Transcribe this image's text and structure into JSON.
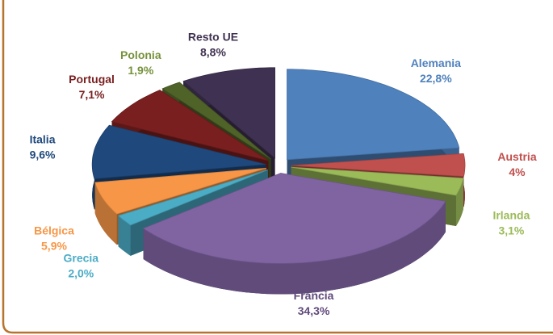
{
  "chart_data": {
    "type": "pie",
    "categories": [
      "Alemania",
      "Austria",
      "Irlanda",
      "Francia",
      "Grecia",
      "Bélgica",
      "Italia",
      "Portugal",
      "Polonia",
      "Resto UE"
    ],
    "values": [
      22.8,
      4,
      3.1,
      34.3,
      2.0,
      5.9,
      9.6,
      7.1,
      1.9,
      8.8
    ],
    "value_labels": [
      "22,8%",
      "4%",
      "3,1%",
      "34,3%",
      "2,0%",
      "5,9%",
      "9,6%",
      "7,1%",
      "1,9%",
      "8,8%"
    ],
    "colors": [
      "#4f81bd",
      "#c0504d",
      "#9bbb59",
      "#8064a2",
      "#4bacc6",
      "#f79646",
      "#1f497d",
      "#7a1f1f",
      "#4f6228",
      "#3f3151"
    ],
    "label_colors": [
      "#4f81bd",
      "#c0504d",
      "#9bbb59",
      "#604a7b",
      "#4bacc6",
      "#f79646",
      "#1f497d",
      "#7a1f1f",
      "#76923c",
      "#3f3151"
    ]
  }
}
